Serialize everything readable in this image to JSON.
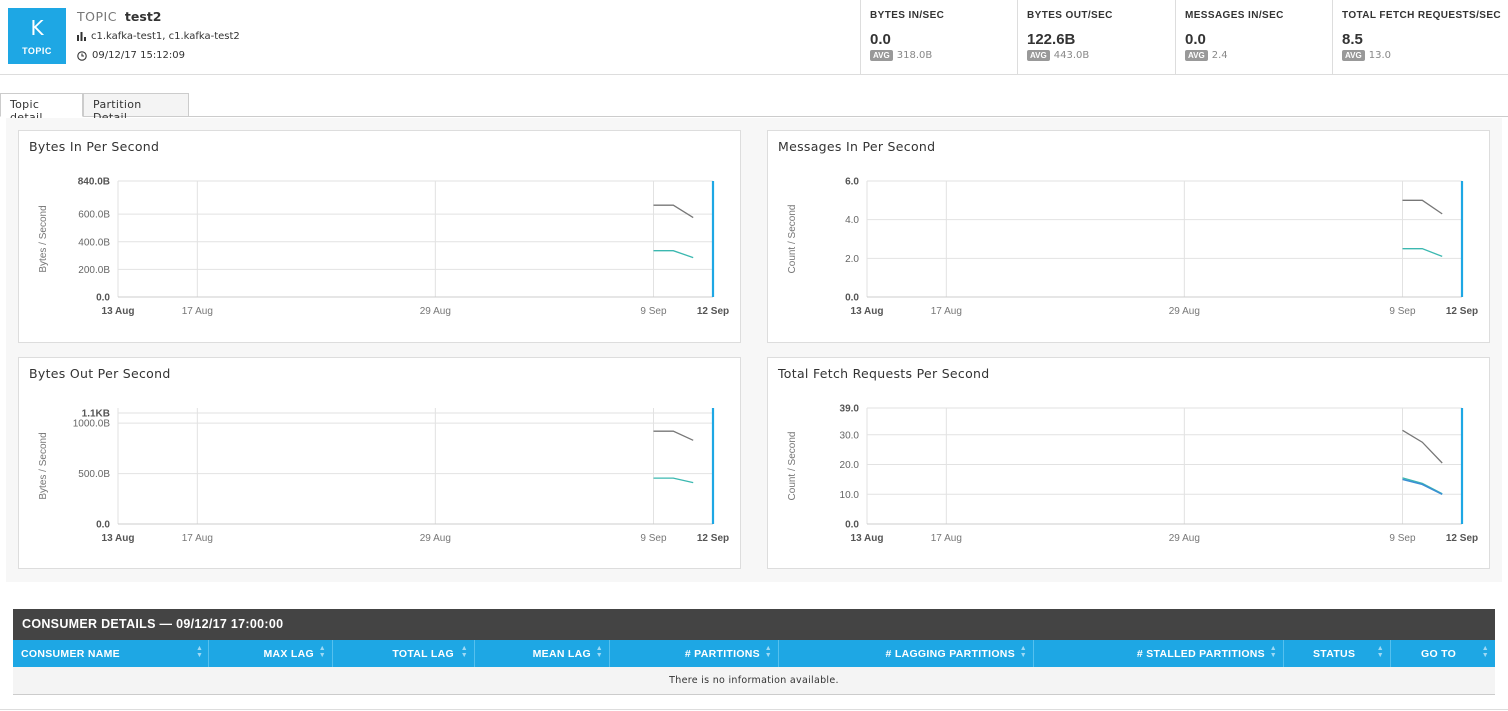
{
  "topic": {
    "badge_letter": "K",
    "badge_label": "TOPIC",
    "prefix": "TOPIC",
    "name": "test2",
    "clusters": "c1.kafka-test1, c1.kafka-test2",
    "timestamp": "09/12/17 15:12:09"
  },
  "stats": [
    {
      "label": "BYTES IN/SEC",
      "value": "0.0",
      "avg_label": "AVG",
      "avg": "318.0B"
    },
    {
      "label": "BYTES OUT/SEC",
      "value": "122.6B",
      "avg_label": "AVG",
      "avg": "443.0B"
    },
    {
      "label": "MESSAGES IN/SEC",
      "value": "0.0",
      "avg_label": "AVG",
      "avg": "2.4"
    },
    {
      "label": "TOTAL FETCH REQUESTS/SEC",
      "value": "8.5",
      "avg_label": "AVG",
      "avg": "13.0"
    }
  ],
  "tabs": [
    {
      "label": "Topic detail",
      "active": true
    },
    {
      "label": "Partition Detail",
      "active": false
    }
  ],
  "colors": {
    "accent": "#1ea7e4",
    "series_gray": "#777777",
    "series_teal": "#3bb8b0",
    "series_blue": "#3a8fd4",
    "header_dark": "#444444"
  },
  "chart_data": [
    {
      "type": "line",
      "title": "Bytes In Per Second",
      "ylabel": "Bytes / Second",
      "xlabel": "",
      "x_ticks": [
        "13 Aug",
        "17 Aug",
        "29 Aug",
        "9 Sep",
        "12 Sep"
      ],
      "y_ticks": [
        "0.0",
        "200.0B",
        "400.0B",
        "600.0B",
        "840.0B"
      ],
      "ylim": [
        0,
        840
      ],
      "series": [
        {
          "color": "gray",
          "x": [
            "9 Sep",
            "10 Sep",
            "11 Sep"
          ],
          "values": [
            665,
            665,
            575
          ]
        },
        {
          "color": "teal",
          "x": [
            "9 Sep",
            "10 Sep",
            "11 Sep"
          ],
          "values": [
            335,
            335,
            285
          ]
        }
      ],
      "marker": "12 Sep"
    },
    {
      "type": "line",
      "title": "Messages In Per Second",
      "ylabel": "Count / Second",
      "xlabel": "",
      "x_ticks": [
        "13 Aug",
        "17 Aug",
        "29 Aug",
        "9 Sep",
        "12 Sep"
      ],
      "y_ticks": [
        "0.0",
        "2.0",
        "4.0",
        "6.0"
      ],
      "ylim": [
        0,
        6
      ],
      "series": [
        {
          "color": "gray",
          "x": [
            "9 Sep",
            "10 Sep",
            "11 Sep"
          ],
          "values": [
            5.0,
            5.0,
            4.3
          ]
        },
        {
          "color": "teal",
          "x": [
            "9 Sep",
            "10 Sep",
            "11 Sep"
          ],
          "values": [
            2.5,
            2.5,
            2.1
          ]
        }
      ],
      "marker": "12 Sep"
    },
    {
      "type": "line",
      "title": "Bytes Out Per Second",
      "ylabel": "Bytes / Second",
      "xlabel": "",
      "x_ticks": [
        "13 Aug",
        "17 Aug",
        "29 Aug",
        "9 Sep",
        "12 Sep"
      ],
      "y_ticks": [
        "0.0",
        "500.0B",
        "1000.0B",
        "1.1KB"
      ],
      "ylim": [
        0,
        1150
      ],
      "series": [
        {
          "color": "gray",
          "x": [
            "9 Sep",
            "10 Sep",
            "11 Sep"
          ],
          "values": [
            920,
            920,
            830
          ]
        },
        {
          "color": "teal",
          "x": [
            "9 Sep",
            "10 Sep",
            "11 Sep"
          ],
          "values": [
            455,
            455,
            410
          ]
        }
      ],
      "marker": "12 Sep"
    },
    {
      "type": "line",
      "title": "Total Fetch Requests Per Second",
      "ylabel": "Count / Second",
      "xlabel": "",
      "x_ticks": [
        "13 Aug",
        "17 Aug",
        "29 Aug",
        "9 Sep",
        "12 Sep"
      ],
      "y_ticks": [
        "0.0",
        "10.0",
        "20.0",
        "30.0",
        "39.0"
      ],
      "ylim": [
        0,
        39
      ],
      "series": [
        {
          "color": "gray",
          "x": [
            "9 Sep",
            "10 Sep",
            "11 Sep"
          ],
          "values": [
            31.5,
            27.5,
            20.5
          ]
        },
        {
          "color": "teal",
          "x": [
            "9 Sep",
            "10 Sep",
            "11 Sep"
          ],
          "values": [
            15.5,
            13.7,
            10.2
          ]
        },
        {
          "color": "blue",
          "x": [
            "9 Sep",
            "10 Sep",
            "11 Sep"
          ],
          "values": [
            15.0,
            13.3,
            10.0
          ]
        }
      ],
      "marker": "12 Sep"
    }
  ],
  "consumer": {
    "title": "CONSUMER DETAILS — 09/12/17 17:00:00",
    "columns": [
      "CONSUMER NAME",
      "MAX LAG",
      "TOTAL LAG",
      "MEAN LAG",
      "# PARTITIONS",
      "# LAGGING PARTITIONS",
      "# STALLED PARTITIONS",
      "STATUS",
      "GO TO"
    ],
    "empty_message": "There is no information available."
  }
}
